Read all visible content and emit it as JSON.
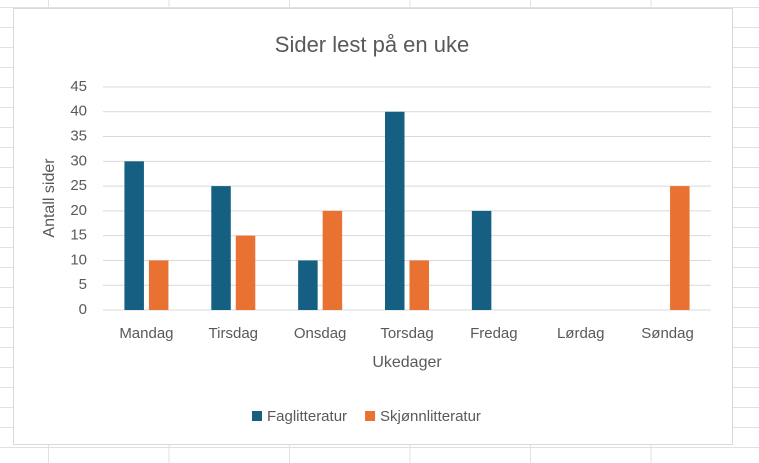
{
  "chart_data": {
    "type": "bar",
    "title": "Sider lest på en uke",
    "x_label": "Ukedager",
    "y_label": "Antall sider",
    "categories": [
      "Mandag",
      "Tirsdag",
      "Onsdag",
      "Torsdag",
      "Fredag",
      "Lørdag",
      "Søndag"
    ],
    "series": [
      {
        "name": "Faglitteratur",
        "color": "#156082",
        "values": [
          30,
          25,
          10,
          40,
          20,
          0,
          0
        ]
      },
      {
        "name": "Skjønnlitteratur",
        "color": "#e97132",
        "values": [
          10,
          15,
          20,
          10,
          0,
          0,
          25
        ]
      }
    ],
    "ylim": [
      0,
      45
    ],
    "yticks": [
      0,
      5,
      10,
      15,
      20,
      25,
      30,
      35,
      40,
      45
    ],
    "grid": true,
    "legend": "bottom"
  }
}
